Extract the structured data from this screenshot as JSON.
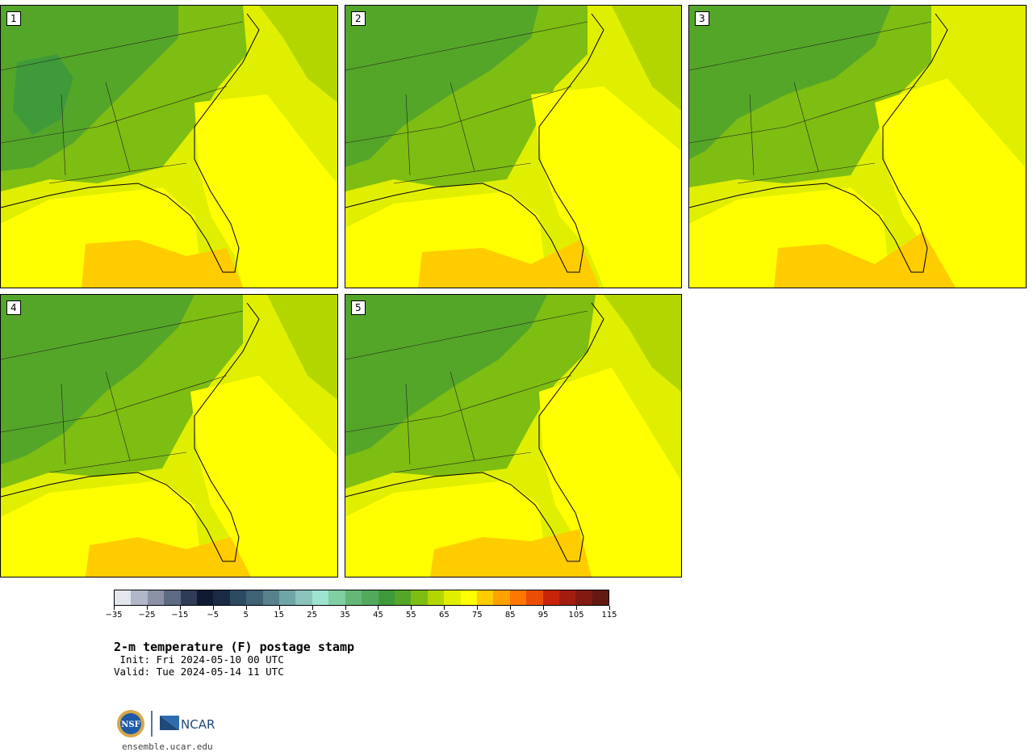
{
  "panels": [
    {
      "label": "1"
    },
    {
      "label": "2"
    },
    {
      "label": "3"
    },
    {
      "label": "4"
    },
    {
      "label": "5"
    }
  ],
  "colorbar": {
    "ticks": [
      "−35",
      "−25",
      "−15",
      "−5",
      "5",
      "15",
      "25",
      "35",
      "45",
      "55",
      "65",
      "75",
      "85",
      "95",
      "105",
      "115"
    ],
    "colors": [
      "#e3e6ec",
      "#b1b6c8",
      "#8a91a6",
      "#5d6a84",
      "#2f3b57",
      "#0f1a33",
      "#1a2a45",
      "#2d4a63",
      "#3f6275",
      "#57828d",
      "#70a5a8",
      "#8ac3bc",
      "#9ee3d0",
      "#7fcfa2",
      "#66b777",
      "#52a95c",
      "#3f9a3a",
      "#54a629",
      "#7ebd12",
      "#b3d600",
      "#e0ee00",
      "#ffff00",
      "#ffcc00",
      "#ffa200",
      "#ff7700",
      "#ec4d06",
      "#c7240b",
      "#a11d10",
      "#821a10",
      "#631911"
    ]
  },
  "title": "2-m temperature (F) postage stamp",
  "init": " Init: Fri 2024-05-10 00 UTC",
  "valid": "Valid: Tue 2024-05-14 11 UTC",
  "logos": {
    "nsf_text": "NSF",
    "ncar_text": "NCAR"
  },
  "website": "ensemble.ucar.edu"
}
